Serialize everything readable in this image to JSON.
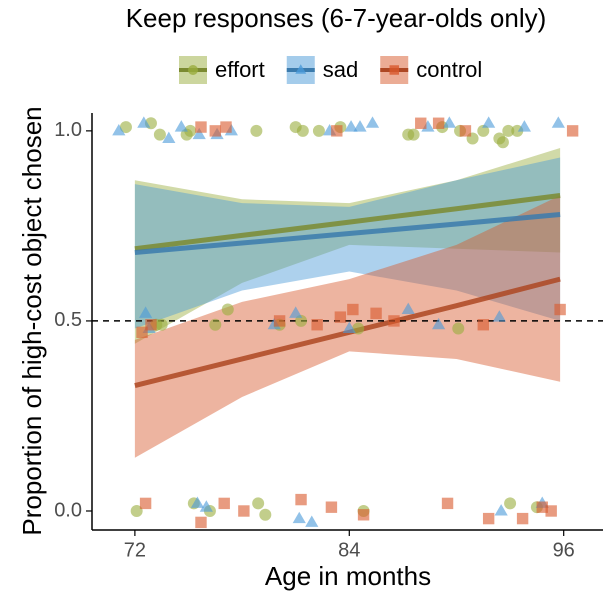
{
  "chart_data": {
    "type": "scatter",
    "title": "Keep responses (6-7-year-olds only)",
    "xlabel": "Age in months",
    "ylabel": "Proportion of high-cost object chosen",
    "xlim": [
      69.6,
      98.2
    ],
    "ylim": [
      -0.05,
      1.047
    ],
    "xticks": [
      72,
      84,
      96
    ],
    "yticks": [
      {
        "value": 0,
        "label": "0.0"
      },
      {
        "value": 0.5,
        "label": "0.5"
      },
      {
        "value": 1,
        "label": "1.0"
      }
    ],
    "hline": 0.5,
    "legend": "top",
    "series": [
      {
        "name": "effort",
        "color": "#9aad3d",
        "marker": "circle",
        "x": [
          71.5,
          72.9,
          73.4,
          74.9,
          75.1,
          78.8,
          81.0,
          81.4,
          82.3,
          83.5,
          87.3,
          87.6,
          89.2,
          90.2,
          90.9,
          91.5,
          92.4,
          92.6,
          92.9,
          93.4,
          73.2,
          73.5,
          76.5,
          77.2,
          80.1,
          81.3,
          84.5,
          90.1,
          72.1,
          75.3,
          78.9,
          79.3,
          84.8,
          93.0,
          94.5,
          76.2
        ],
        "values": [
          1.01,
          1.02,
          0.99,
          0.99,
          1.0,
          1.0,
          1.01,
          1.0,
          1.0,
          1.01,
          0.99,
          0.99,
          1.01,
          1.0,
          0.98,
          1.0,
          0.98,
          0.97,
          1.0,
          1.0,
          0.49,
          0.49,
          0.49,
          0.53,
          0.49,
          0.5,
          0.48,
          0.48,
          0.0,
          0.02,
          0.02,
          -0.01,
          0.0,
          0.02,
          0.01,
          0.0
        ],
        "fit": {
          "x": [
            72,
            78,
            84,
            90,
            95.8
          ],
          "values": [
            0.69,
            0.725,
            0.76,
            0.795,
            0.83
          ],
          "lower": [
            0.44,
            0.6,
            0.7,
            0.69,
            0.68
          ],
          "upper": [
            0.87,
            0.82,
            0.81,
            0.87,
            0.955
          ]
        }
      },
      {
        "name": "sad",
        "color": "#4a9ad8",
        "marker": "triangle",
        "x": [
          71.1,
          72.5,
          73.9,
          74.6,
          75.6,
          77.4,
          82.9,
          84.1,
          84.6,
          85.3,
          88.4,
          89.6,
          91.8,
          93.8,
          95.7,
          76.6,
          72.6,
          72.8,
          79.8,
          81.0,
          84.0,
          87.3,
          89.0,
          92.4,
          75.5,
          76.0,
          81.2,
          81.9,
          92.5,
          94.8
        ],
        "values": [
          1.0,
          1.02,
          0.98,
          1.01,
          0.99,
          1.0,
          1.0,
          1.01,
          1.01,
          1.02,
          1.01,
          1.02,
          1.02,
          1.01,
          1.02,
          0.99,
          0.52,
          0.48,
          0.49,
          0.52,
          0.48,
          0.53,
          0.49,
          0.51,
          0.02,
          0.01,
          -0.02,
          -0.03,
          0.0,
          0.02
        ],
        "fit": {
          "x": [
            72,
            78,
            84,
            90,
            95.8
          ],
          "values": [
            0.68,
            0.705,
            0.73,
            0.755,
            0.78
          ],
          "lower": [
            0.48,
            0.58,
            0.63,
            0.58,
            0.5
          ],
          "upper": [
            0.86,
            0.81,
            0.8,
            0.87,
            0.93
          ]
        }
      },
      {
        "name": "control",
        "color": "#d8592c",
        "marker": "square",
        "x": [
          75.7,
          76.5,
          77.1,
          83.3,
          88.0,
          90.5,
          96.5,
          89.0,
          72.4,
          72.9,
          80.1,
          82.2,
          83.5,
          84.2,
          85.5,
          86.5,
          91.5,
          95.8,
          72.6,
          75.7,
          77.0,
          78.1,
          81.3,
          83.0,
          84.8,
          89.5,
          91.8,
          93.7,
          95.3,
          94.8
        ],
        "values": [
          1.01,
          1.0,
          1.01,
          1.0,
          1.02,
          1.0,
          1.0,
          1.02,
          0.47,
          0.49,
          0.5,
          0.49,
          0.51,
          0.53,
          0.52,
          0.5,
          0.49,
          0.53,
          0.02,
          -0.03,
          0.02,
          0.0,
          0.03,
          0.01,
          -0.01,
          0.02,
          -0.02,
          -0.02,
          0.0,
          0.01
        ],
        "fit": {
          "x": [
            72,
            78,
            84,
            90,
            95.8
          ],
          "values": [
            0.33,
            0.4,
            0.47,
            0.54,
            0.61
          ],
          "lower": [
            0.14,
            0.3,
            0.42,
            0.4,
            0.34
          ],
          "upper": [
            0.45,
            0.55,
            0.61,
            0.7,
            0.83
          ]
        }
      }
    ]
  }
}
